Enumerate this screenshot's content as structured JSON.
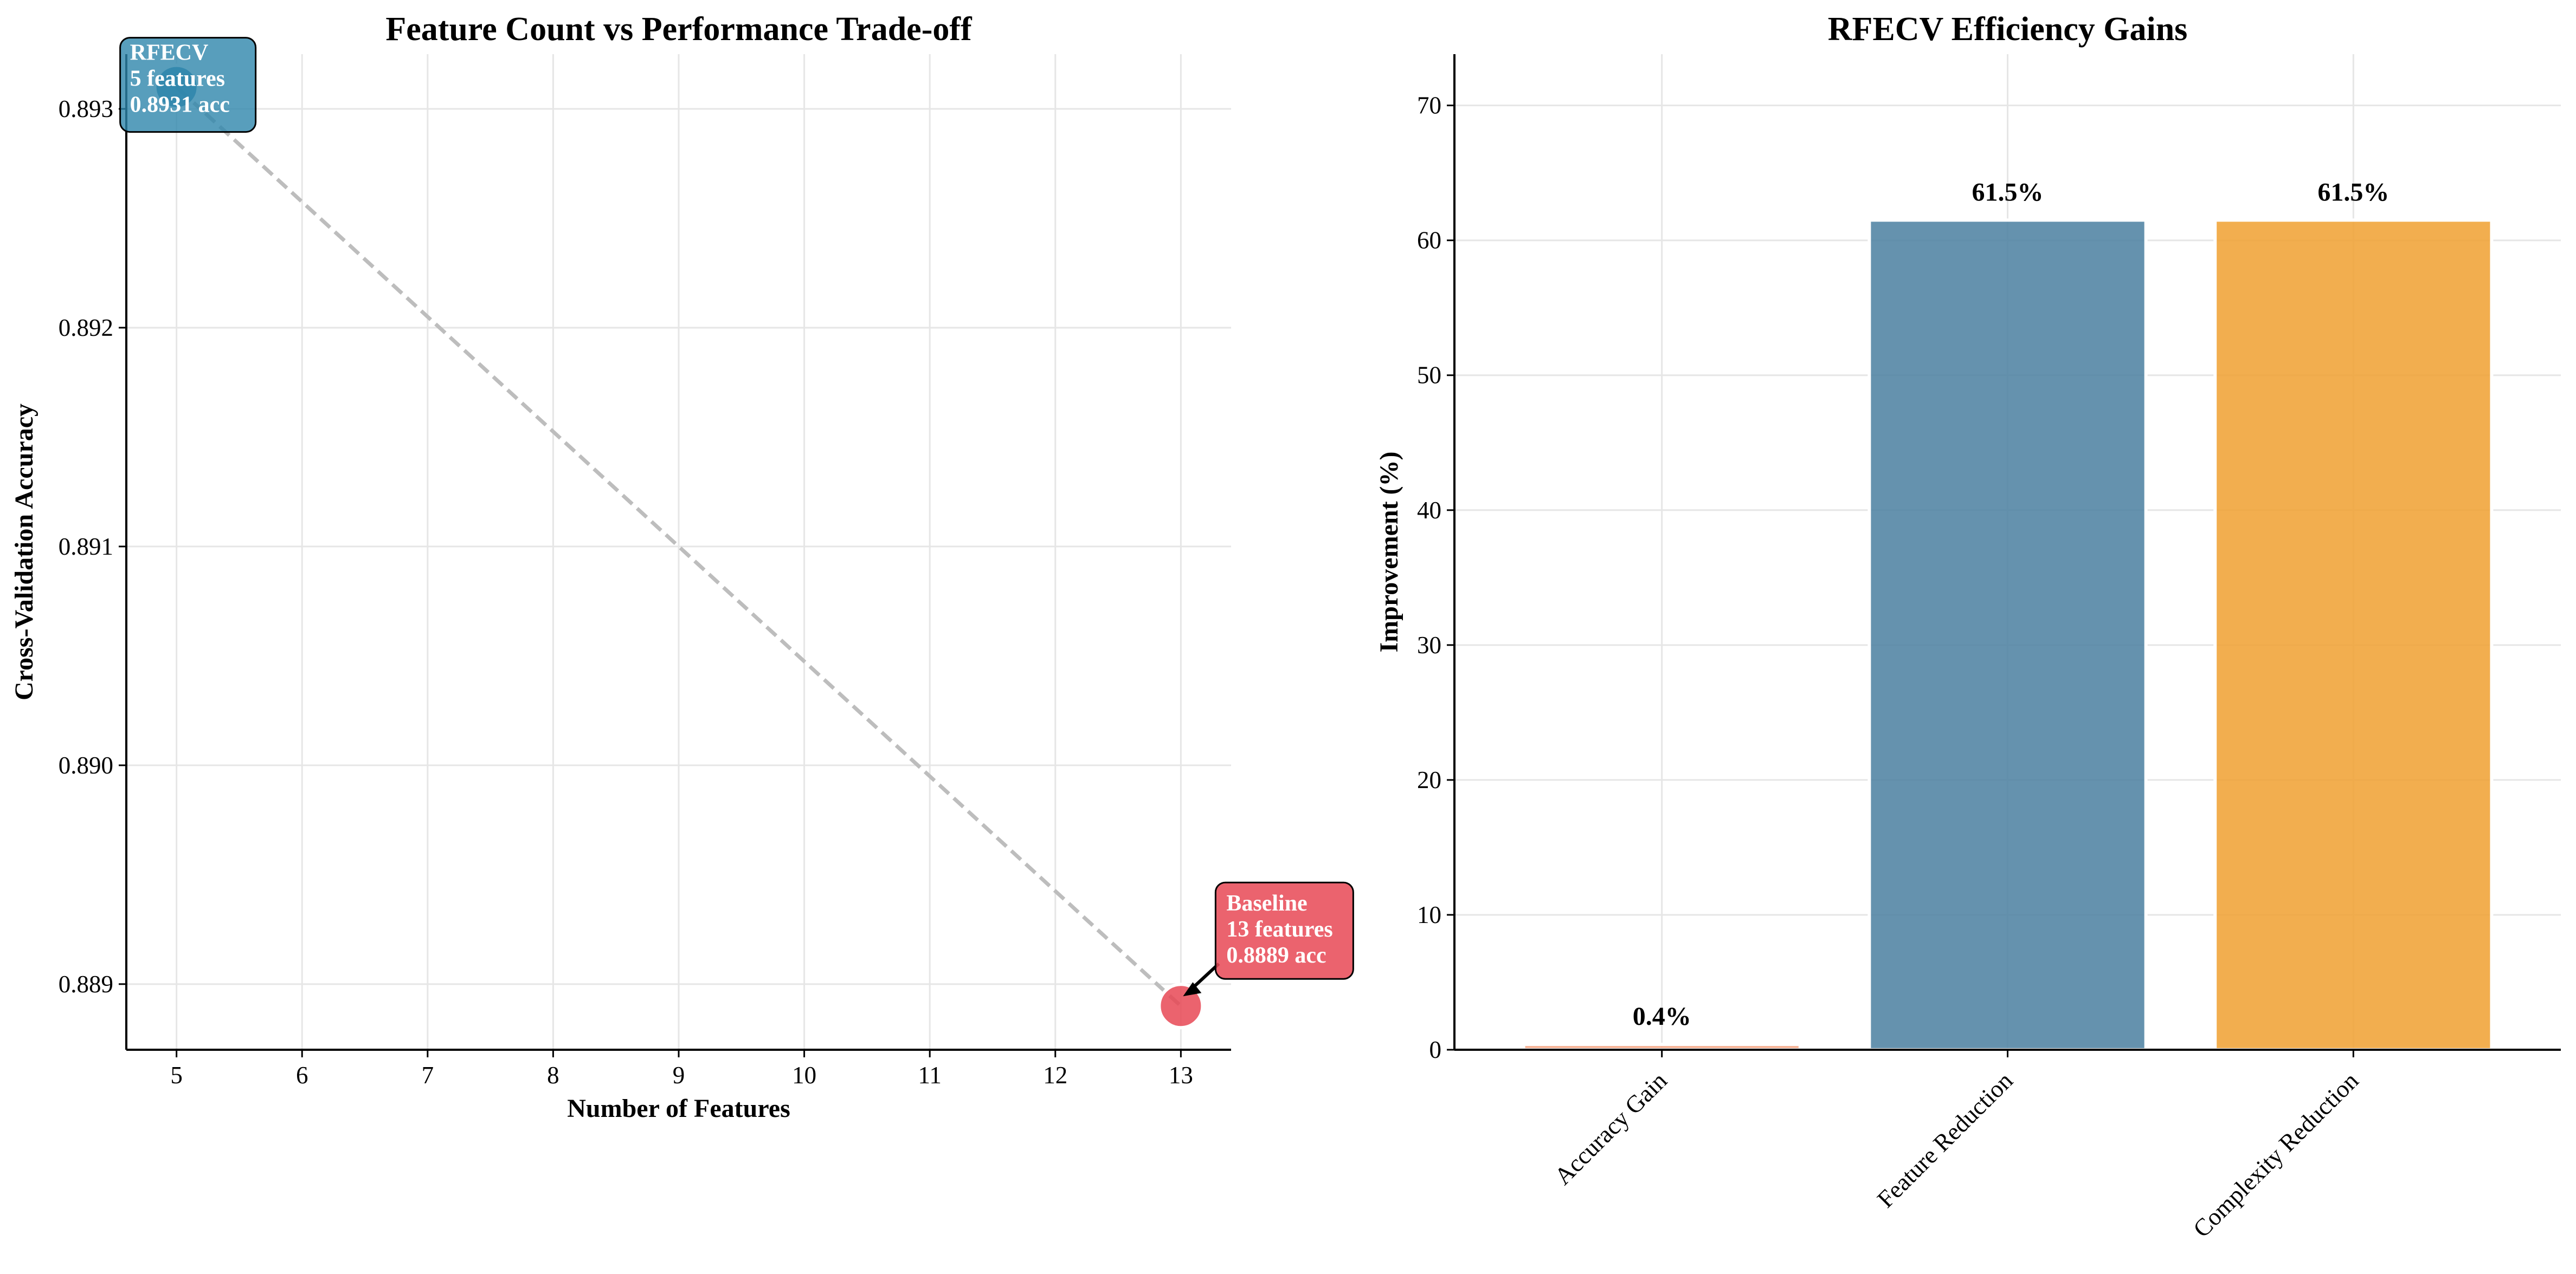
{
  "chart_data": [
    {
      "type": "scatter",
      "title": "Feature Count vs Performance Trade-off",
      "xlabel": "Number of Features",
      "ylabel": "Cross-Validation Accuracy",
      "xlim": [
        4.6,
        13.4
      ],
      "ylim": [
        0.8887,
        0.89325
      ],
      "xticks": [
        "5",
        "6",
        "7",
        "8",
        "9",
        "10",
        "11",
        "12",
        "13"
      ],
      "yticks": [
        "0.889",
        "0.890",
        "0.891",
        "0.892",
        "0.893"
      ],
      "grid": true,
      "points": [
        {
          "name": "RFECV",
          "x": 5,
          "y": 0.8931,
          "color": "#2e86ab",
          "annotation": [
            "RFECV",
            "5 features",
            "0.8931 acc"
          ]
        },
        {
          "name": "Baseline",
          "x": 13,
          "y": 0.8889,
          "color": "#e84855",
          "annotation": [
            "Baseline",
            "13 features",
            "0.8889 acc"
          ]
        }
      ],
      "connector": "dashed-gray"
    },
    {
      "type": "bar",
      "title": "RFECV Efficiency Gains",
      "xlabel": "",
      "ylabel": "Improvement (%)",
      "categories": [
        "Accuracy Gain",
        "Feature Reduction",
        "Complexity Reduction"
      ],
      "values": [
        0.4,
        61.5,
        61.5
      ],
      "value_labels": [
        "0.4%",
        "61.5%",
        "61.5%"
      ],
      "colors": [
        "#f4a582",
        "#4a7fa0",
        "#f0a030"
      ],
      "ylim": [
        0,
        73.8
      ],
      "yticks": [
        "0",
        "10",
        "20",
        "30",
        "40",
        "50",
        "60",
        "70"
      ],
      "grid": true
    }
  ]
}
